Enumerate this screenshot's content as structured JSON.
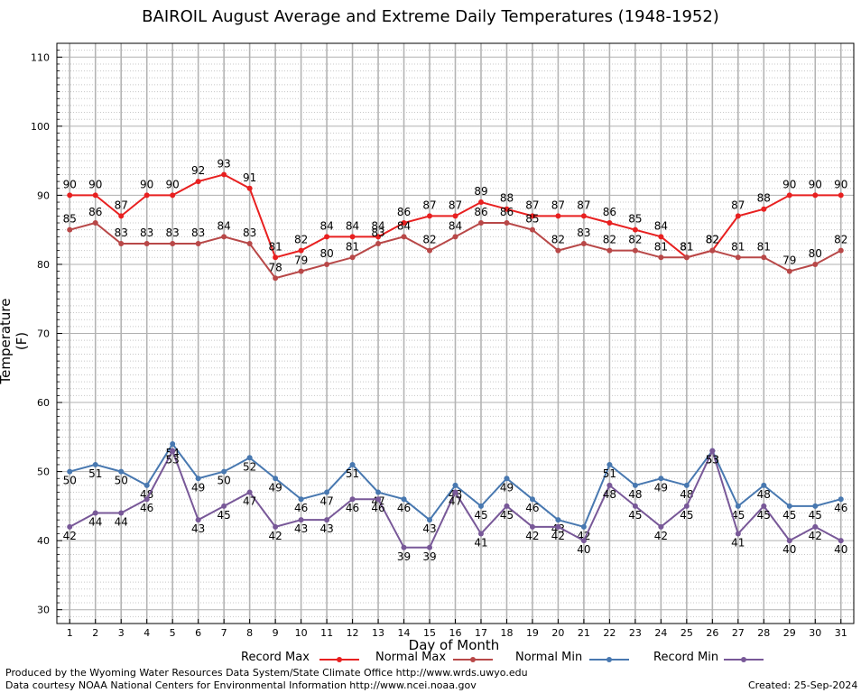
{
  "header": {
    "title": "BAIROIL August Average and Extreme Daily Temperatures (1948-1952)"
  },
  "footer": {
    "produced_by": "Produced by the Wyoming Water Resources Data System/State Climate Office http://www.wrds.uwyo.edu",
    "courtesy": "Data courtesy NOAA National Centers for Environmental Information http://www.ncei.noaa.gov",
    "created": "Created: 25-Sep-2024"
  },
  "colors": {
    "record_max": "#e82020",
    "normal_max": "#b84848",
    "normal_min": "#4878b0",
    "record_min": "#785898"
  },
  "chart_data": {
    "type": "line",
    "title": "BAIROIL August Average and Extreme Daily Temperatures (1948-1952)",
    "xlabel": "Day of Month",
    "ylabel": "Temperature (F)",
    "x": [
      1,
      2,
      3,
      4,
      5,
      6,
      7,
      8,
      9,
      10,
      11,
      12,
      13,
      14,
      15,
      16,
      17,
      18,
      19,
      20,
      21,
      22,
      23,
      24,
      25,
      26,
      27,
      28,
      29,
      30,
      31
    ],
    "xlim": [
      0.5,
      31.5
    ],
    "ylim": [
      28,
      112
    ],
    "yticks": [
      30,
      40,
      50,
      60,
      70,
      80,
      90,
      100,
      110
    ],
    "grid": true,
    "legend_position": "bottom",
    "series": [
      {
        "name": "Record Max",
        "color": "#e82020",
        "values": [
          90,
          90,
          87,
          90,
          90,
          92,
          93,
          91,
          81,
          82,
          84,
          84,
          84,
          86,
          87,
          87,
          89,
          88,
          87,
          87,
          87,
          86,
          85,
          84,
          81,
          82,
          87,
          88,
          90,
          90,
          90
        ]
      },
      {
        "name": "Normal Max",
        "color": "#b84848",
        "values": [
          85,
          86,
          83,
          83,
          83,
          83,
          84,
          83,
          78,
          79,
          80,
          81,
          83,
          84,
          82,
          84,
          86,
          86,
          85,
          82,
          83,
          82,
          82,
          81,
          81,
          82,
          81,
          81,
          79,
          80,
          82
        ]
      },
      {
        "name": "Normal Min",
        "color": "#4878b0",
        "values": [
          50,
          51,
          50,
          48,
          54,
          49,
          50,
          52,
          49,
          46,
          47,
          51,
          47,
          46,
          43,
          48,
          45,
          49,
          46,
          43,
          42,
          51,
          48,
          49,
          48,
          53,
          45,
          48,
          45,
          45,
          46
        ]
      },
      {
        "name": "Record Min",
        "color": "#785898",
        "values": [
          42,
          44,
          44,
          46,
          53,
          43,
          45,
          47,
          42,
          43,
          43,
          46,
          46,
          39,
          39,
          47,
          41,
          45,
          42,
          42,
          40,
          48,
          45,
          42,
          45,
          53,
          41,
          45,
          40,
          42,
          40
        ]
      }
    ]
  }
}
